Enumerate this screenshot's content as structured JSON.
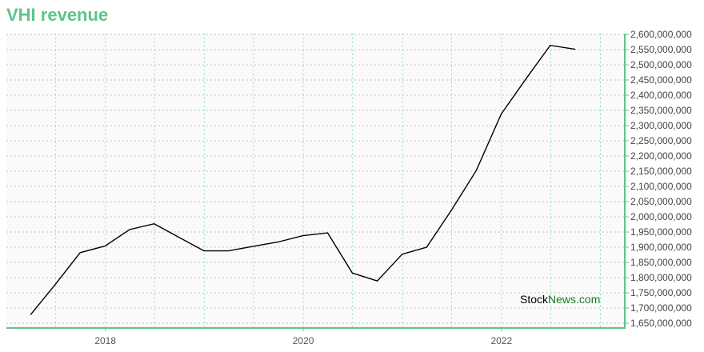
{
  "title": "VHI revenue",
  "watermark": {
    "part1": "Stock",
    "part2": "News",
    "part3": ".com"
  },
  "colors": {
    "accent": "#5ec48a",
    "plot_bg": "#fbf9f9",
    "line": "#000000",
    "watermark_dark": "#000000",
    "watermark_green": "#1a7a2a"
  },
  "chart_data": {
    "type": "line",
    "title": "VHI revenue",
    "xlabel": "",
    "ylabel": "",
    "grid": true,
    "x_ticks": [
      "2018",
      "2020",
      "2022"
    ],
    "xlim": [
      "2017-01-01",
      "2023-04-01"
    ],
    "ylim": [
      1650000000,
      2600000000
    ],
    "y_ticks": [
      1650000000,
      1700000000,
      1750000000,
      1800000000,
      1850000000,
      1900000000,
      1950000000,
      2000000000,
      2050000000,
      2100000000,
      2150000000,
      2200000000,
      2250000000,
      2300000000,
      2350000000,
      2400000000,
      2450000000,
      2500000000,
      2550000000,
      2600000000
    ],
    "y_tick_labels": [
      "1,650,000,000",
      "1,700,000,000",
      "1,750,000,000",
      "1,800,000,000",
      "1,850,000,000",
      "1,900,000,000",
      "1,950,000,000",
      "2,000,000,000",
      "2,050,000,000",
      "2,100,000,000",
      "2,150,000,000",
      "2,200,000,000",
      "2,250,000,000",
      "2,300,000,000",
      "2,350,000,000",
      "2,400,000,000",
      "2,450,000,000",
      "2,500,000,000",
      "2,550,000,000",
      "2,600,000,000"
    ],
    "series": [
      {
        "x": [
          "2017-03-31",
          "2017-06-30",
          "2017-09-30",
          "2017-12-31",
          "2018-03-31",
          "2018-06-30",
          "2018-09-30",
          "2018-12-31",
          "2019-03-31",
          "2019-06-30",
          "2019-09-30",
          "2019-12-31",
          "2020-03-31",
          "2020-06-30",
          "2020-09-30",
          "2020-12-31",
          "2021-03-31",
          "2021-06-30",
          "2021-09-30",
          "2021-12-31",
          "2022-03-31",
          "2022-06-30",
          "2022-09-30"
        ],
        "values": [
          1678000000,
          1777000000,
          1882000000,
          1904000000,
          1958000000,
          1977000000,
          1932000000,
          1888000000,
          1888000000,
          1903000000,
          1917000000,
          1938000000,
          1947000000,
          1815000000,
          1789000000,
          1877000000,
          1900000000,
          2021000000,
          2152000000,
          2338000000,
          2452000000,
          2564000000,
          2551000000
        ]
      }
    ]
  }
}
